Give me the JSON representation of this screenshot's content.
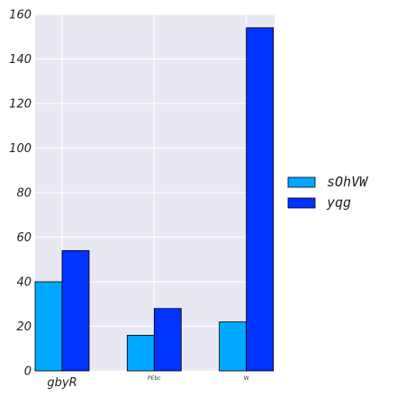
{
  "chart_data": {
    "type": "bar",
    "categories": [
      "gbyR",
      "PEbc",
      "W"
    ],
    "series": [
      {
        "name": "sOhVW",
        "values": [
          40,
          16,
          22
        ],
        "color": "#00a8ff"
      },
      {
        "name": "yqg",
        "values": [
          54,
          28,
          154
        ],
        "color": "#0033ff"
      }
    ],
    "ylim": [
      0,
      160
    ],
    "yticks": [
      0,
      20,
      40,
      60,
      80,
      100,
      120,
      140,
      160
    ],
    "grid": true,
    "legend_position": "right",
    "plot_background": "#e8e8f2"
  }
}
